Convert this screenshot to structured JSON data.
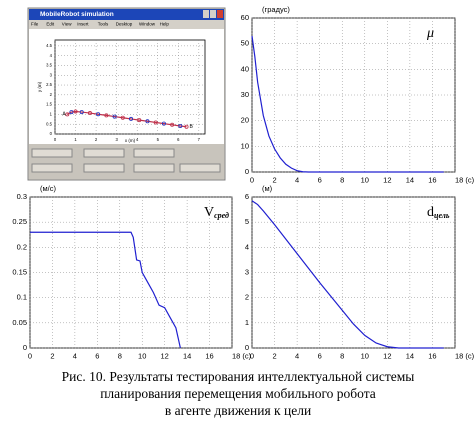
{
  "screenshot": {
    "title": "MobileRobot simulation",
    "menu": [
      "File",
      "Edit",
      "View",
      "Insert",
      "Tools",
      "Desktop",
      "Window",
      "Help"
    ],
    "plot": {
      "type": "line",
      "xlabel": "x (m)",
      "ylabel": "y (m)",
      "start_label": "A",
      "end_label": "B",
      "xlim": [
        0,
        7.3
      ],
      "ylim": [
        0,
        4.8
      ],
      "xticks": [
        0,
        1,
        2,
        3,
        4,
        5,
        6,
        7
      ],
      "yticks": [
        0,
        0.5,
        1,
        1.5,
        2,
        2.5,
        3,
        3.5,
        4,
        4.5
      ],
      "grid": true,
      "markers": true,
      "color": "#c0304a",
      "x": [
        0.6,
        0.8,
        1.0,
        1.3,
        1.7,
        2.1,
        2.5,
        2.9,
        3.3,
        3.7,
        4.1,
        4.5,
        4.9,
        5.3,
        5.7,
        6.1,
        6.4
      ],
      "values": [
        1.0,
        1.12,
        1.15,
        1.12,
        1.07,
        1.01,
        0.95,
        0.89,
        0.83,
        0.77,
        0.71,
        0.65,
        0.59,
        0.53,
        0.47,
        0.41,
        0.37
      ]
    }
  },
  "chart_data": [
    {
      "type": "line",
      "ylabel": "(градус)",
      "annotation": {
        "text": "μ"
      },
      "color": "#2020d0",
      "xlim": [
        0,
        18
      ],
      "ylim": [
        0,
        60
      ],
      "grid": true,
      "xticks": [
        0,
        2,
        4,
        6,
        8,
        10,
        12,
        14,
        16,
        {
          "value": 18,
          "label": "18 (с)"
        }
      ],
      "yticks": [
        0,
        10,
        20,
        30,
        40,
        50,
        60
      ],
      "x": [
        0,
        0.25,
        0.5,
        1,
        1.5,
        2,
        2.5,
        3,
        3.5,
        4,
        4.5,
        5,
        17
      ],
      "values": [
        53,
        45,
        35,
        22,
        14,
        9,
        5.5,
        3,
        1.5,
        0.5,
        0.1,
        0,
        0
      ]
    },
    {
      "type": "line",
      "ylabel": "(м/с)",
      "annotation": {
        "text": "V",
        "sub": "сред"
      },
      "color": "#2020d0",
      "xlim": [
        0,
        18
      ],
      "ylim": [
        0,
        0.3
      ],
      "grid": true,
      "xticks": [
        0,
        2,
        4,
        6,
        8,
        10,
        12,
        14,
        16,
        {
          "value": 18,
          "label": "18 (с)"
        }
      ],
      "yticks": [
        0,
        0.05,
        0.1,
        0.15,
        0.2,
        0.25,
        0.3
      ],
      "x": [
        0,
        9,
        9.2,
        9.5,
        9.8,
        10,
        10.5,
        11,
        11.5,
        12,
        12.5,
        13,
        13.2,
        13.4
      ],
      "values": [
        0.23,
        0.23,
        0.22,
        0.175,
        0.173,
        0.15,
        0.13,
        0.11,
        0.085,
        0.08,
        0.06,
        0.04,
        0.02,
        0
      ]
    },
    {
      "type": "line",
      "ylabel": "(м)",
      "annotation": {
        "text": "d",
        "sub": "цель"
      },
      "color": "#2020d0",
      "xlim": [
        0,
        18
      ],
      "ylim": [
        0,
        6
      ],
      "grid": true,
      "xticks": [
        0,
        2,
        4,
        6,
        8,
        10,
        12,
        14,
        16,
        {
          "value": 18,
          "label": "18 (с)"
        }
      ],
      "yticks": [
        0,
        1,
        2,
        3,
        4,
        5,
        6
      ],
      "x": [
        0,
        0.5,
        1,
        2,
        4,
        6,
        8,
        9,
        10,
        11,
        12,
        13,
        17
      ],
      "values": [
        5.85,
        5.7,
        5.45,
        4.9,
        3.75,
        2.6,
        1.5,
        0.95,
        0.5,
        0.2,
        0.05,
        0,
        0
      ]
    }
  ],
  "caption": [
    "Рис. 10. Результаты тестирования интеллектуальной системы",
    "планирования перемещения мобильного робота",
    "в агенте движения к цели"
  ]
}
